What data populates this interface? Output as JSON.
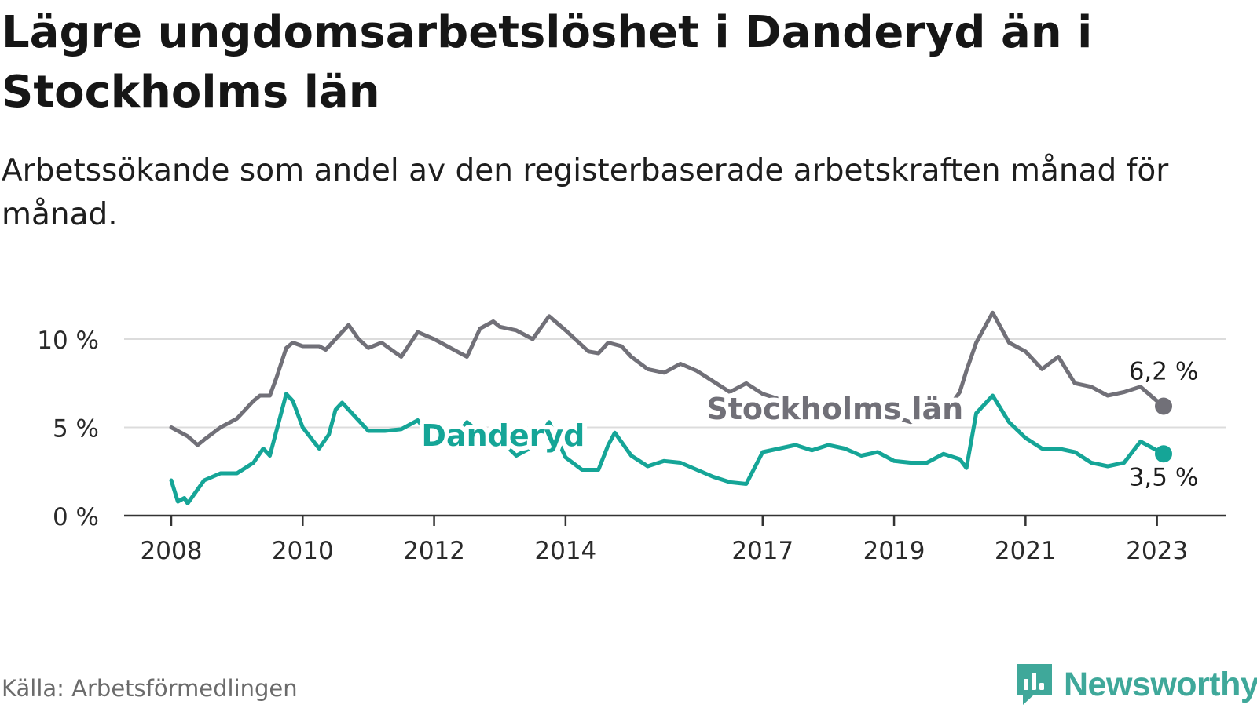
{
  "header": {
    "title": "Lägre ungdomsarbetslöshet i Danderyd än i Stockholms län",
    "subtitle": "Arbetssökande som andel av den registerbaserade arbetskraften månad för månad."
  },
  "footer": {
    "source": "Källa: Arbetsförmedlingen",
    "brand": "Newsworthy",
    "brand_icon": "newsworthy-logo-icon"
  },
  "colors": {
    "stockholm": "#717078",
    "danderyd": "#15a597",
    "grid": "#dcdcdc",
    "axis": "#333333",
    "brand": "#3fa89a"
  },
  "chart_data": {
    "type": "line",
    "ylabel": "",
    "xlabel": "",
    "ylim": [
      0,
      11.5
    ],
    "xlim": [
      2008.0,
      2023.6
    ],
    "y_ticks": [
      {
        "value": 0,
        "label": "0 %"
      },
      {
        "value": 5,
        "label": "5 %"
      },
      {
        "value": 10,
        "label": "10 %"
      }
    ],
    "x_ticks": [
      {
        "value": 2008,
        "label": "2008"
      },
      {
        "value": 2010,
        "label": "2010"
      },
      {
        "value": 2012,
        "label": "2012"
      },
      {
        "value": 2014,
        "label": "2014"
      },
      {
        "value": 2017,
        "label": "2017"
      },
      {
        "value": 2019,
        "label": "2019"
      },
      {
        "value": 2021,
        "label": "2021"
      },
      {
        "value": 2023,
        "label": "2023"
      }
    ],
    "series": [
      {
        "name": "Stockholms län",
        "end_label": "6,2 %",
        "x": [
          2008.0,
          2008.25,
          2008.4,
          2008.5,
          2008.75,
          2009.0,
          2009.25,
          2009.35,
          2009.5,
          2009.6,
          2009.75,
          2009.85,
          2010.0,
          2010.25,
          2010.35,
          2010.5,
          2010.7,
          2010.85,
          2011.0,
          2011.2,
          2011.5,
          2011.75,
          2012.0,
          2012.25,
          2012.35,
          2012.5,
          2012.7,
          2012.9,
          2013.0,
          2013.25,
          2013.5,
          2013.75,
          2014.0,
          2014.35,
          2014.5,
          2014.65,
          2014.85,
          2015.0,
          2015.25,
          2015.5,
          2015.75,
          2016.0,
          2016.5,
          2016.75,
          2017.0,
          2017.25,
          2017.5,
          2017.75,
          2018.0,
          2018.25,
          2018.5,
          2018.75,
          2019.0,
          2019.25,
          2019.5,
          2019.7,
          2020.0,
          2020.1,
          2020.25,
          2020.5,
          2020.75,
          2021.0,
          2021.25,
          2021.5,
          2021.75,
          2022.0,
          2022.25,
          2022.5,
          2022.75,
          2023.0,
          2023.1
        ],
        "values": [
          5.0,
          4.5,
          4.0,
          4.3,
          5.0,
          5.5,
          6.5,
          6.8,
          6.8,
          7.8,
          9.5,
          9.8,
          9.6,
          9.6,
          9.4,
          10.0,
          10.8,
          10.0,
          9.5,
          9.8,
          9.0,
          10.4,
          10.0,
          9.5,
          9.3,
          9.0,
          10.6,
          11.0,
          10.7,
          10.5,
          10.0,
          11.3,
          10.5,
          9.3,
          9.2,
          9.8,
          9.6,
          9.0,
          8.3,
          8.1,
          8.6,
          8.2,
          7.0,
          7.5,
          6.9,
          6.6,
          6.3,
          6.0,
          5.8,
          5.7,
          5.6,
          5.5,
          5.6,
          5.3,
          5.5,
          5.4,
          7.0,
          8.2,
          9.8,
          11.5,
          9.8,
          9.3,
          8.3,
          9.0,
          7.5,
          7.3,
          6.8,
          7.0,
          7.3,
          6.5,
          6.2
        ]
      },
      {
        "name": "Danderyd",
        "end_label": "3,5 %",
        "x": [
          2008.0,
          2008.1,
          2008.2,
          2008.25,
          2008.5,
          2008.75,
          2009.0,
          2009.25,
          2009.4,
          2009.5,
          2009.75,
          2009.85,
          2010.0,
          2010.25,
          2010.4,
          2010.5,
          2010.6,
          2010.75,
          2011.0,
          2011.25,
          2011.5,
          2011.75,
          2012.0,
          2012.25,
          2012.5,
          2012.75,
          2013.0,
          2013.25,
          2013.5,
          2013.75,
          2014.0,
          2014.25,
          2014.5,
          2014.65,
          2014.75,
          2015.0,
          2015.25,
          2015.5,
          2015.75,
          2016.0,
          2016.25,
          2016.5,
          2016.75,
          2017.0,
          2017.25,
          2017.5,
          2017.75,
          2018.0,
          2018.25,
          2018.5,
          2018.75,
          2019.0,
          2019.25,
          2019.5,
          2019.75,
          2020.0,
          2020.1,
          2020.25,
          2020.5,
          2020.75,
          2021.0,
          2021.25,
          2021.5,
          2021.75,
          2022.0,
          2022.25,
          2022.5,
          2022.75,
          2023.0,
          2023.1
        ],
        "values": [
          2.0,
          0.8,
          1.0,
          0.7,
          2.0,
          2.4,
          2.4,
          3.0,
          3.8,
          3.4,
          6.9,
          6.5,
          5.0,
          3.8,
          4.6,
          6.0,
          6.4,
          5.8,
          4.8,
          4.8,
          4.9,
          5.4,
          4.2,
          4.1,
          5.3,
          4.5,
          4.3,
          3.4,
          3.9,
          5.3,
          3.3,
          2.6,
          2.6,
          4.0,
          4.7,
          3.4,
          2.8,
          3.1,
          3.0,
          2.6,
          2.2,
          1.9,
          1.8,
          3.6,
          3.8,
          4.0,
          3.7,
          4.0,
          3.8,
          3.4,
          3.6,
          3.1,
          3.0,
          3.0,
          3.5,
          3.2,
          2.7,
          5.8,
          6.8,
          5.3,
          4.4,
          3.8,
          3.8,
          3.6,
          3.0,
          2.8,
          3.0,
          4.2,
          3.7,
          3.5
        ]
      }
    ],
    "annotations": [
      {
        "text": "Stockholms län",
        "series": "Stockholms län",
        "x": 2018.1,
        "y": 6.0
      },
      {
        "text": "Danderyd",
        "series": "Danderyd",
        "x": 2013.05,
        "y": 4.5
      }
    ],
    "grid": true,
    "legend": "inline labels"
  }
}
